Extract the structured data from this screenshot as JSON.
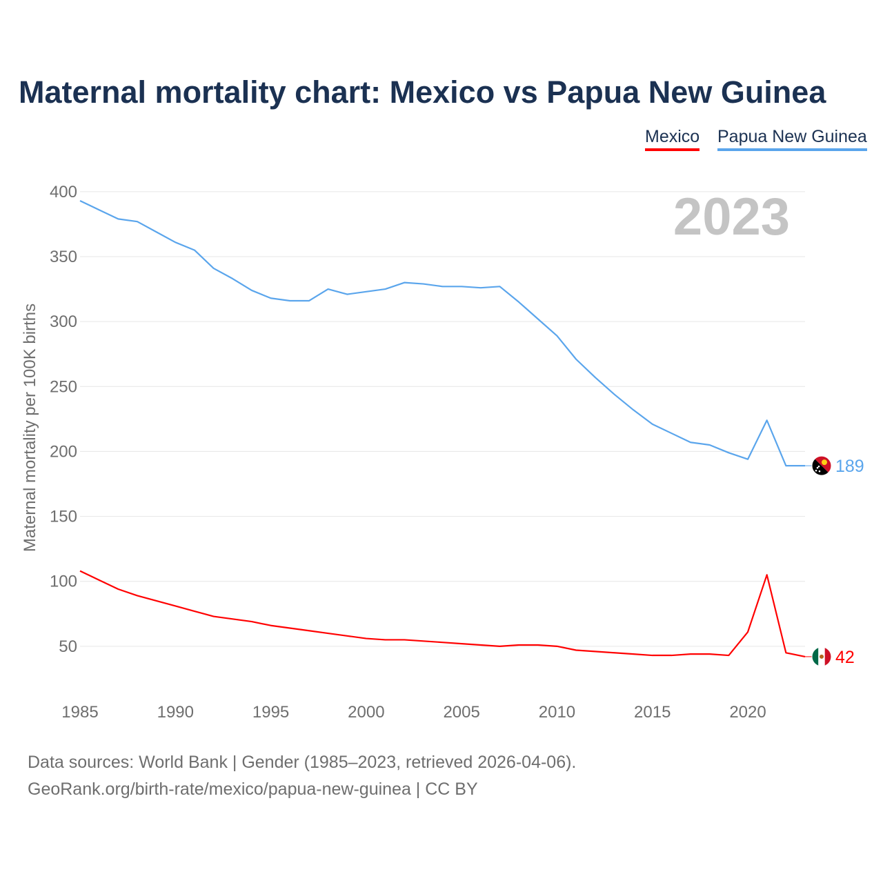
{
  "title": "Maternal mortality chart: Mexico vs Papua New Guinea",
  "footer": {
    "line1": "Data sources: World Bank | Gender (1985–2023, retrieved 2026-04-06).",
    "line2": "GeoRank.org/birth-rate/mexico/papua-new-guinea | CC BY"
  },
  "chart_data": {
    "type": "line",
    "title": "Maternal mortality chart: Mexico vs Papua New Guinea",
    "xlabel": "",
    "ylabel": "Maternal mortality per 100K births",
    "year_watermark": "2023",
    "xlim": [
      1985,
      2023
    ],
    "ylim": [
      0,
      400
    ],
    "x_ticks": [
      "1985",
      "1990",
      "1995",
      "2000",
      "2005",
      "2010",
      "2015",
      "2020"
    ],
    "y_ticks": [
      "50",
      "100",
      "150",
      "200",
      "250",
      "300",
      "350",
      "400"
    ],
    "legend_position": "top-right",
    "x": [
      1985,
      1986,
      1987,
      1988,
      1989,
      1990,
      1991,
      1992,
      1993,
      1994,
      1995,
      1996,
      1997,
      1998,
      1999,
      2000,
      2001,
      2002,
      2003,
      2004,
      2005,
      2006,
      2007,
      2008,
      2009,
      2010,
      2011,
      2012,
      2013,
      2014,
      2015,
      2016,
      2017,
      2018,
      2019,
      2020,
      2021,
      2022,
      2023
    ],
    "series": [
      {
        "name": "Mexico",
        "color": "#ff0000",
        "end_label": "42",
        "values": [
          108,
          101,
          94,
          89,
          85,
          81,
          77,
          73,
          71,
          69,
          66,
          64,
          62,
          60,
          58,
          56,
          55,
          55,
          54,
          53,
          52,
          51,
          50,
          51,
          51,
          50,
          47,
          46,
          45,
          44,
          43,
          43,
          44,
          44,
          43,
          61,
          105,
          45,
          42
        ]
      },
      {
        "name": "Papua New Guinea",
        "color": "#5aa5ec",
        "end_label": "189",
        "values": [
          393,
          386,
          379,
          377,
          369,
          361,
          355,
          341,
          333,
          324,
          318,
          316,
          316,
          325,
          321,
          323,
          325,
          330,
          329,
          327,
          327,
          326,
          327,
          315,
          302,
          289,
          271,
          257,
          244,
          232,
          221,
          214,
          207,
          205,
          199,
          194,
          224,
          189,
          189
        ]
      }
    ]
  }
}
